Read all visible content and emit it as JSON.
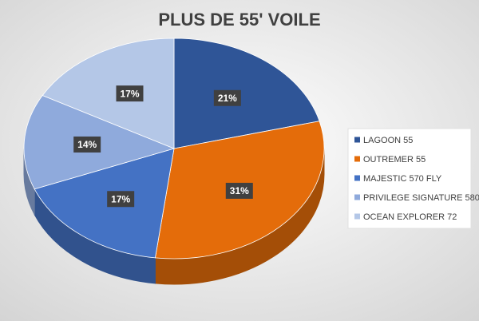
{
  "chart_data": {
    "type": "pie3d",
    "title": "PLUS DE 55' VOILE",
    "categories": [
      "LAGOON 55",
      "OUTREMER 55",
      "MAJESTIC 570 FLY",
      "PRIVILEGE SIGNATURE 580",
      "OCEAN EXPLORER 72"
    ],
    "values": [
      21,
      31,
      17,
      14,
      17
    ],
    "value_labels": [
      "21%",
      "31%",
      "17%",
      "14%",
      "17%"
    ],
    "colors": [
      "#2f5597",
      "#e46c0a",
      "#4472c4",
      "#8faadc",
      "#b4c7e7"
    ],
    "legend": "right"
  }
}
